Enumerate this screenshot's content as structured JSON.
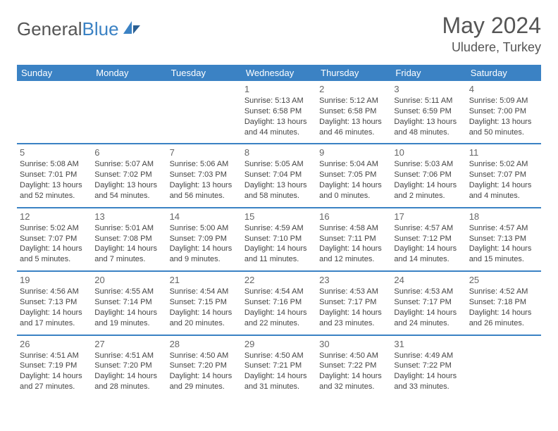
{
  "brand": {
    "part1": "General",
    "part2": "Blue"
  },
  "title": "May 2024",
  "location": "Uludere, Turkey",
  "colors": {
    "header_bg": "#3b82c4",
    "header_fg": "#ffffff",
    "rule": "#3b82c4",
    "text": "#444"
  },
  "weekdays": [
    "Sunday",
    "Monday",
    "Tuesday",
    "Wednesday",
    "Thursday",
    "Friday",
    "Saturday"
  ],
  "weeks": [
    [
      null,
      null,
      null,
      {
        "n": "1",
        "sr": "5:13 AM",
        "ss": "6:58 PM",
        "dl": "13 hours and 44 minutes."
      },
      {
        "n": "2",
        "sr": "5:12 AM",
        "ss": "6:58 PM",
        "dl": "13 hours and 46 minutes."
      },
      {
        "n": "3",
        "sr": "5:11 AM",
        "ss": "6:59 PM",
        "dl": "13 hours and 48 minutes."
      },
      {
        "n": "4",
        "sr": "5:09 AM",
        "ss": "7:00 PM",
        "dl": "13 hours and 50 minutes."
      }
    ],
    [
      {
        "n": "5",
        "sr": "5:08 AM",
        "ss": "7:01 PM",
        "dl": "13 hours and 52 minutes."
      },
      {
        "n": "6",
        "sr": "5:07 AM",
        "ss": "7:02 PM",
        "dl": "13 hours and 54 minutes."
      },
      {
        "n": "7",
        "sr": "5:06 AM",
        "ss": "7:03 PM",
        "dl": "13 hours and 56 minutes."
      },
      {
        "n": "8",
        "sr": "5:05 AM",
        "ss": "7:04 PM",
        "dl": "13 hours and 58 minutes."
      },
      {
        "n": "9",
        "sr": "5:04 AM",
        "ss": "7:05 PM",
        "dl": "14 hours and 0 minutes."
      },
      {
        "n": "10",
        "sr": "5:03 AM",
        "ss": "7:06 PM",
        "dl": "14 hours and 2 minutes."
      },
      {
        "n": "11",
        "sr": "5:02 AM",
        "ss": "7:07 PM",
        "dl": "14 hours and 4 minutes."
      }
    ],
    [
      {
        "n": "12",
        "sr": "5:02 AM",
        "ss": "7:07 PM",
        "dl": "14 hours and 5 minutes."
      },
      {
        "n": "13",
        "sr": "5:01 AM",
        "ss": "7:08 PM",
        "dl": "14 hours and 7 minutes."
      },
      {
        "n": "14",
        "sr": "5:00 AM",
        "ss": "7:09 PM",
        "dl": "14 hours and 9 minutes."
      },
      {
        "n": "15",
        "sr": "4:59 AM",
        "ss": "7:10 PM",
        "dl": "14 hours and 11 minutes."
      },
      {
        "n": "16",
        "sr": "4:58 AM",
        "ss": "7:11 PM",
        "dl": "14 hours and 12 minutes."
      },
      {
        "n": "17",
        "sr": "4:57 AM",
        "ss": "7:12 PM",
        "dl": "14 hours and 14 minutes."
      },
      {
        "n": "18",
        "sr": "4:57 AM",
        "ss": "7:13 PM",
        "dl": "14 hours and 15 minutes."
      }
    ],
    [
      {
        "n": "19",
        "sr": "4:56 AM",
        "ss": "7:13 PM",
        "dl": "14 hours and 17 minutes."
      },
      {
        "n": "20",
        "sr": "4:55 AM",
        "ss": "7:14 PM",
        "dl": "14 hours and 19 minutes."
      },
      {
        "n": "21",
        "sr": "4:54 AM",
        "ss": "7:15 PM",
        "dl": "14 hours and 20 minutes."
      },
      {
        "n": "22",
        "sr": "4:54 AM",
        "ss": "7:16 PM",
        "dl": "14 hours and 22 minutes."
      },
      {
        "n": "23",
        "sr": "4:53 AM",
        "ss": "7:17 PM",
        "dl": "14 hours and 23 minutes."
      },
      {
        "n": "24",
        "sr": "4:53 AM",
        "ss": "7:17 PM",
        "dl": "14 hours and 24 minutes."
      },
      {
        "n": "25",
        "sr": "4:52 AM",
        "ss": "7:18 PM",
        "dl": "14 hours and 26 minutes."
      }
    ],
    [
      {
        "n": "26",
        "sr": "4:51 AM",
        "ss": "7:19 PM",
        "dl": "14 hours and 27 minutes."
      },
      {
        "n": "27",
        "sr": "4:51 AM",
        "ss": "7:20 PM",
        "dl": "14 hours and 28 minutes."
      },
      {
        "n": "28",
        "sr": "4:50 AM",
        "ss": "7:20 PM",
        "dl": "14 hours and 29 minutes."
      },
      {
        "n": "29",
        "sr": "4:50 AM",
        "ss": "7:21 PM",
        "dl": "14 hours and 31 minutes."
      },
      {
        "n": "30",
        "sr": "4:50 AM",
        "ss": "7:22 PM",
        "dl": "14 hours and 32 minutes."
      },
      {
        "n": "31",
        "sr": "4:49 AM",
        "ss": "7:22 PM",
        "dl": "14 hours and 33 minutes."
      },
      null
    ]
  ],
  "labels": {
    "sunrise": "Sunrise: ",
    "sunset": "Sunset: ",
    "daylight": "Daylight: "
  }
}
